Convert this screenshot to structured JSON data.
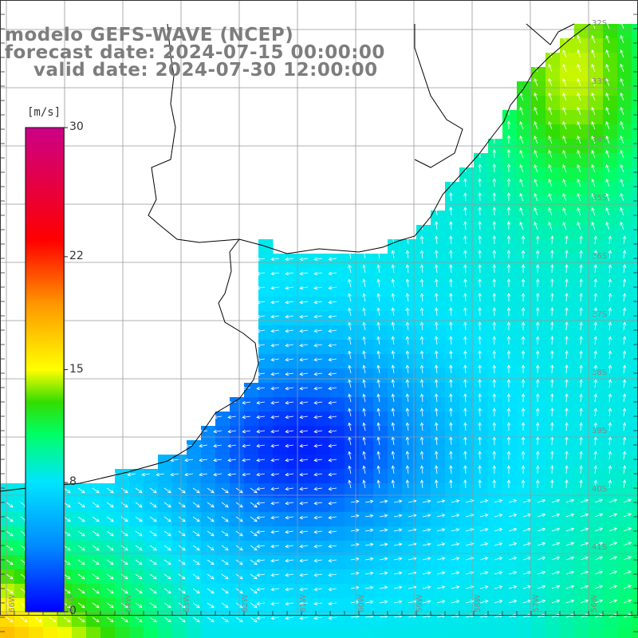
{
  "titles": {
    "model": "modelo GEFS-WAVE (NCEP)",
    "forecast": "forecast date: 2024-07-15 00:00:00",
    "valid": "valid date: 2024-07-30 12:00:00"
  },
  "colorbar": {
    "unit": "[m/s]",
    "min": 0,
    "max": 30,
    "ticks": [
      {
        "value": 30,
        "label": "30"
      },
      {
        "value": 22,
        "label": "22"
      },
      {
        "value": 15,
        "label": "15"
      },
      {
        "value": 8,
        "label": "8"
      },
      {
        "value": 0,
        "label": "0"
      }
    ],
    "colors": [
      "#0000ff",
      "#0088ff",
      "#00e5ff",
      "#00ff66",
      "#33dd00",
      "#ffff00",
      "#ff9900",
      "#ff0000",
      "#cc0088"
    ]
  },
  "grid": {
    "lon_labels": [
      "66W",
      "65W",
      "64W",
      "63W",
      "62W",
      "61W",
      "60W",
      "59W",
      "58W",
      "57W",
      "56W",
      "55W"
    ],
    "lat_labels": [
      "32S",
      "33S",
      "34S",
      "35S",
      "36S",
      "37S",
      "38S",
      "39S",
      "40S",
      "41S"
    ]
  },
  "colors": {
    "land": "#ffffff",
    "grid_line": "#999999",
    "coast": "#000000",
    "arrow": "#ffffff",
    "title": "#7d7d7d"
  }
}
